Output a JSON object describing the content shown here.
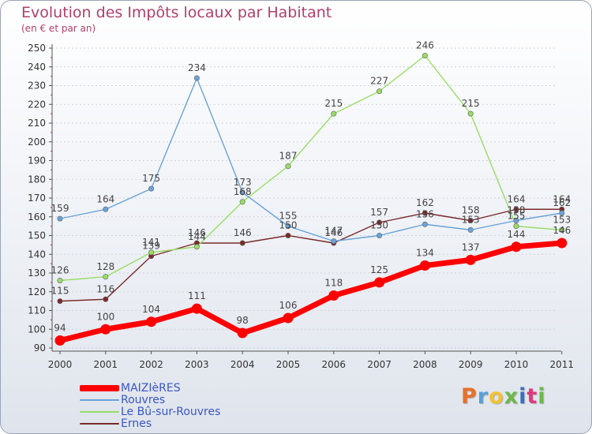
{
  "title": "Evolution des Impôts locaux par Habitant",
  "subtitle": "(en € et par an)",
  "chart_data": {
    "type": "line",
    "title": "Evolution des Impôts locaux par Habitant",
    "subtitle": "(en € et par an)",
    "x": [
      "2000",
      "2001",
      "2002",
      "2003",
      "2004",
      "2005",
      "2006",
      "2007",
      "2008",
      "2009",
      "2010",
      "2011"
    ],
    "ylim": [
      90,
      250
    ],
    "yticks": [
      90,
      100,
      110,
      120,
      130,
      140,
      150,
      160,
      170,
      180,
      190,
      200,
      210,
      220,
      230,
      240,
      250
    ],
    "grid": "horizontal",
    "legend": "bottom-left",
    "series": [
      {
        "name": "MAIZIèRES",
        "color": "#ff0000",
        "values": [
          94,
          100,
          104,
          111,
          98,
          106,
          118,
          125,
          134,
          137,
          144,
          146
        ]
      },
      {
        "name": "Rouvres",
        "color": "#6aa3d8",
        "values": [
          159,
          164,
          175,
          234,
          173,
          155,
          147,
          150,
          156,
          153,
          158,
          162
        ]
      },
      {
        "name": "Le Bû-sur-Rouvres",
        "color": "#99dd66",
        "values": [
          126,
          128,
          141,
          144,
          168,
          187,
          215,
          227,
          246,
          215,
          155,
          153
        ]
      },
      {
        "name": "Ernes",
        "color": "#7a2a2a",
        "values": [
          115,
          116,
          139,
          146,
          146,
          150,
          146,
          157,
          162,
          158,
          164,
          164
        ]
      }
    ]
  },
  "logo": {
    "text": "Proxiti",
    "colors": [
      "#e8702a",
      "#5aa0d8",
      "#f2c230",
      "#6cb84a",
      "#3a6fc4",
      "#e03a7a",
      "#6cb84a"
    ]
  }
}
